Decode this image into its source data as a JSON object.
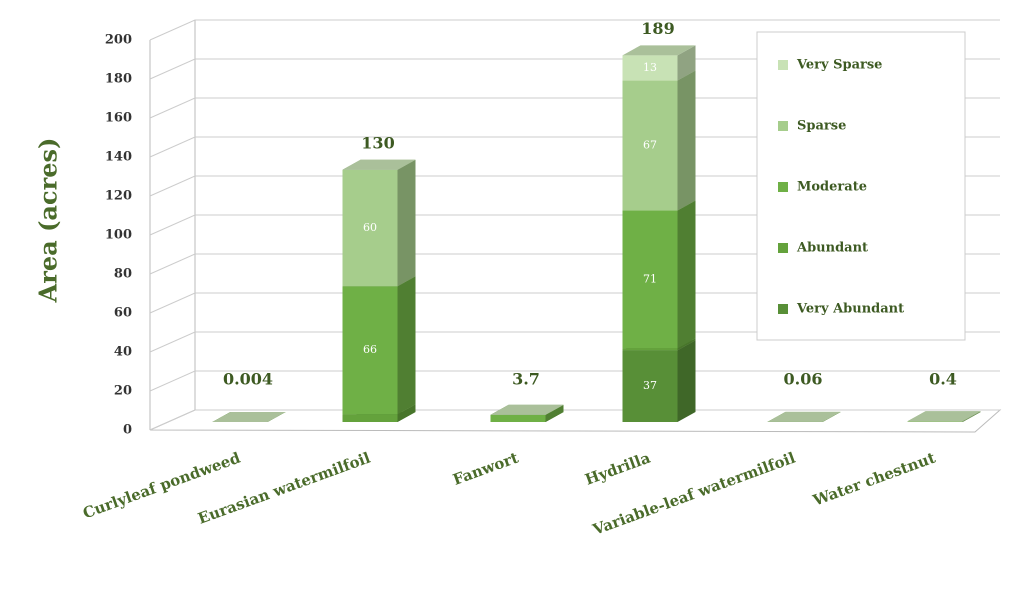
{
  "chart_data": {
    "type": "bar3d_stacked",
    "y_label": "Area (acres)",
    "categories": [
      "Curlyleaf pondweed",
      "Eurasian watermilfoil",
      "Fanwort",
      "Hydrilla",
      "Variable-leaf watermilfoil",
      "Water chestnut"
    ],
    "series": [
      {
        "name": "Very Abundant",
        "color": "#588f37",
        "values": [
          0,
          0,
          0,
          37,
          0,
          0
        ]
      },
      {
        "name": "Abundant",
        "color": "#64a23c",
        "values": [
          0,
          4,
          0,
          1,
          0,
          0
        ]
      },
      {
        "name": "Moderate",
        "color": "#6fb046",
        "values": [
          0,
          66,
          3.7,
          71,
          0,
          0
        ]
      },
      {
        "name": "Sparse",
        "color": "#a6cd8c",
        "values": [
          0.004,
          60,
          0,
          67,
          0.06,
          0.4
        ]
      },
      {
        "name": "Very Sparse",
        "color": "#c8e2b5",
        "values": [
          0,
          0,
          0,
          13,
          0,
          0
        ]
      }
    ],
    "totals": [
      0.004,
      130,
      3.7,
      189,
      0.06,
      0.4
    ],
    "ylim": [
      0,
      200
    ],
    "yticks": [
      0,
      20,
      40,
      60,
      80,
      100,
      120,
      140,
      160,
      180,
      200
    ],
    "grid": true
  }
}
